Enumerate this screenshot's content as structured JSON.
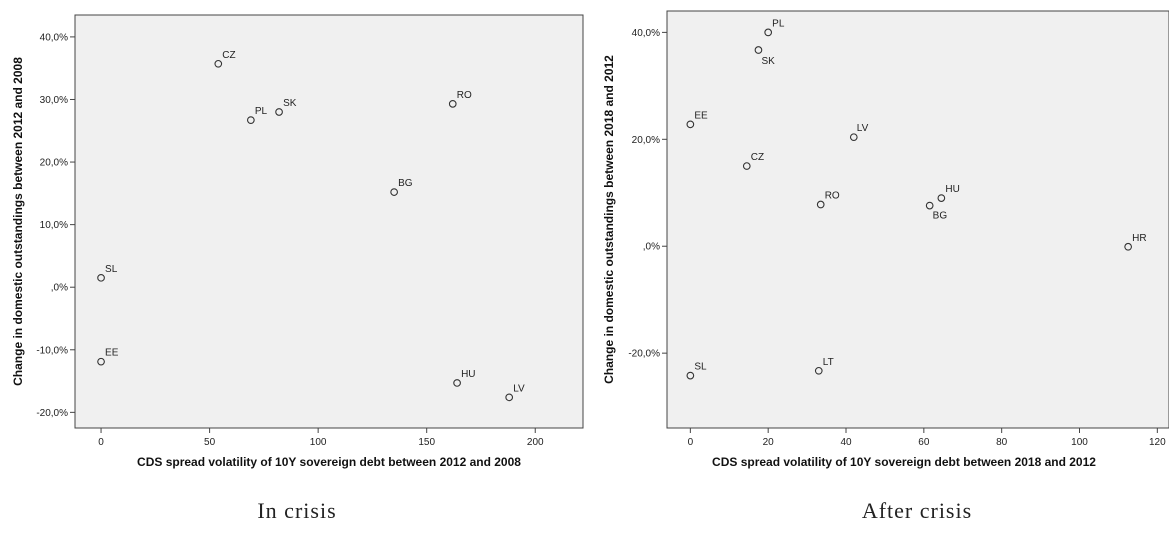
{
  "chart_data": [
    {
      "type": "scatter",
      "caption": "In crisis",
      "xlabel": "CDS spread volatility of 10Y sovereign debt between 2012 and 2008",
      "ylabel": "Change in domestic outstandings between 2012 and 2008",
      "xlim": [
        -12,
        222
      ],
      "ylim": [
        -22.5,
        43.5
      ],
      "xticks": [
        0,
        50,
        100,
        150,
        200
      ],
      "xtick_labels": [
        "0",
        "50",
        "100",
        "150",
        "200"
      ],
      "yticks": [
        -20,
        -10,
        0,
        10,
        20,
        30,
        40
      ],
      "ytick_labels": [
        "-20,0%",
        "-10,0%",
        ",0%",
        "10,0%",
        "20,0%",
        "30,0%",
        "40,0%"
      ],
      "points": [
        {
          "label": "CZ",
          "x": 54,
          "y": 35.7
        },
        {
          "label": "PL",
          "x": 69,
          "y": 26.7
        },
        {
          "label": "SK",
          "x": 82,
          "y": 28.0
        },
        {
          "label": "RO",
          "x": 162,
          "y": 29.3
        },
        {
          "label": "BG",
          "x": 135,
          "y": 15.2
        },
        {
          "label": "SL",
          "x": 0,
          "y": 1.5
        },
        {
          "label": "EE",
          "x": 0,
          "y": -11.9
        },
        {
          "label": "HU",
          "x": 164,
          "y": -15.3
        },
        {
          "label": "LV",
          "x": 188,
          "y": -17.6
        }
      ]
    },
    {
      "type": "scatter",
      "caption": "After crisis",
      "xlabel": "CDS spread volatility of 10Y sovereign debt between 2018 and 2012",
      "ylabel": "Change in domestic outstandings between 2018 and 2012",
      "xlim": [
        -6,
        123
      ],
      "ylim": [
        -34,
        44
      ],
      "xticks": [
        0,
        20,
        40,
        60,
        80,
        100,
        120
      ],
      "xtick_labels": [
        "0",
        "20",
        "40",
        "60",
        "80",
        "100",
        "120"
      ],
      "yticks": [
        -20,
        0,
        20,
        40
      ],
      "ytick_labels": [
        "-20,0%",
        ",0%",
        "20,0%",
        "40,0%"
      ],
      "points": [
        {
          "label": "PL",
          "x": 20,
          "y": 40.0
        },
        {
          "label": "SK",
          "x": 17.5,
          "y": 36.7
        },
        {
          "label": "EE",
          "x": 0,
          "y": 22.8
        },
        {
          "label": "LV",
          "x": 42,
          "y": 20.4
        },
        {
          "label": "CZ",
          "x": 14.5,
          "y": 15.0
        },
        {
          "label": "RO",
          "x": 33.5,
          "y": 7.8
        },
        {
          "label": "HU",
          "x": 64.5,
          "y": 9.0
        },
        {
          "label": "BG",
          "x": 61.5,
          "y": 7.6
        },
        {
          "label": "HR",
          "x": 112.5,
          "y": -0.1
        },
        {
          "label": "SL",
          "x": 0,
          "y": -24.2
        },
        {
          "label": "LT",
          "x": 33,
          "y": -23.3
        }
      ]
    }
  ]
}
